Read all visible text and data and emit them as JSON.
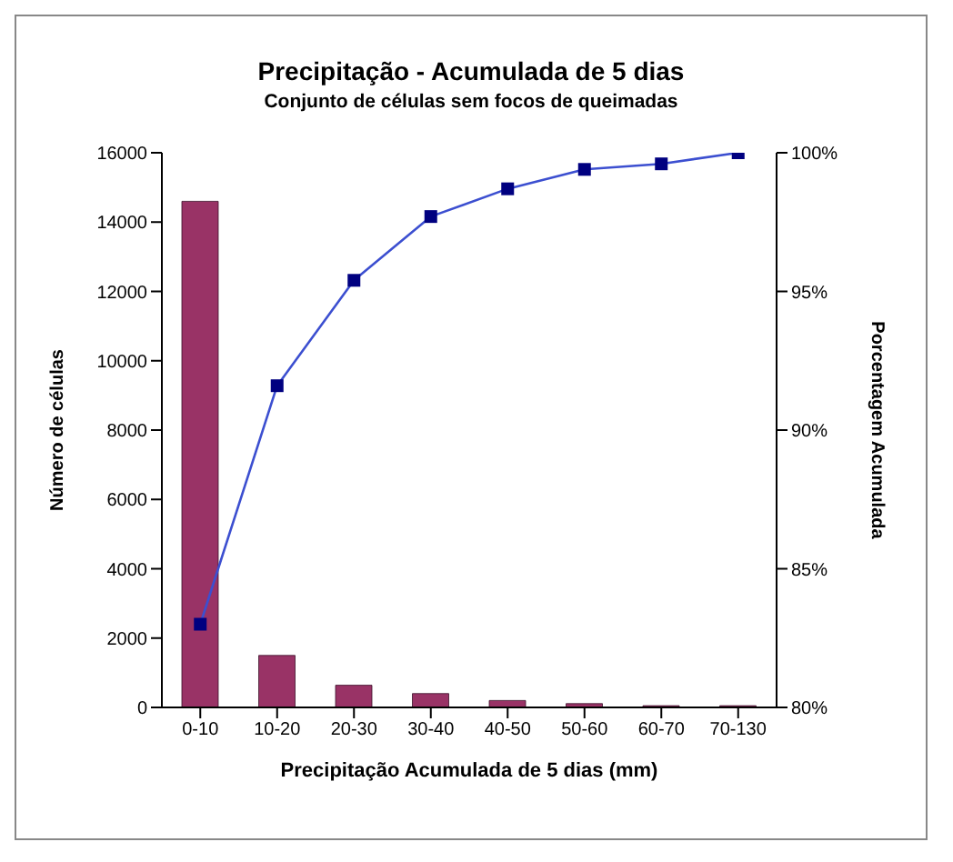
{
  "chart_data": {
    "type": "bar",
    "title": "Precipitação - Acumulada de 5 dias",
    "subtitle": "Conjunto de células sem focos de queimadas",
    "xlabel": "Precipitação Acumulada de 5 dias (mm)",
    "ylabel": "Número  de células",
    "y2label": "Porcentagem Acumulada",
    "categories": [
      "0-10",
      "10-20",
      "20-30",
      "30-40",
      "40-50",
      "50-60",
      "60-70",
      "70-130"
    ],
    "series": [
      {
        "color": "#993366",
        "values": [
          14600,
          1500,
          640,
          400,
          200,
          110,
          50,
          50
        ]
      },
      {
        "type": "line",
        "axis": "y2",
        "color": "#3c4fd0",
        "values": [
          83.0,
          91.6,
          95.4,
          97.7,
          98.7,
          99.4,
          99.6,
          100
        ]
      }
    ],
    "ylim": [
      0,
      16000
    ],
    "yticks": [
      0,
      2000,
      4000,
      6000,
      8000,
      10000,
      12000,
      14000,
      16000
    ],
    "y2lim": [
      80,
      100
    ],
    "y2ticks": [
      {
        "value": 80,
        "label": "80%"
      },
      {
        "value": 85,
        "label": "85%"
      },
      {
        "value": 90,
        "label": "90%"
      },
      {
        "value": 95,
        "label": "95%"
      },
      {
        "value": 100,
        "label": "100%"
      }
    ],
    "marker": "square",
    "grid": false,
    "legend": false
  }
}
